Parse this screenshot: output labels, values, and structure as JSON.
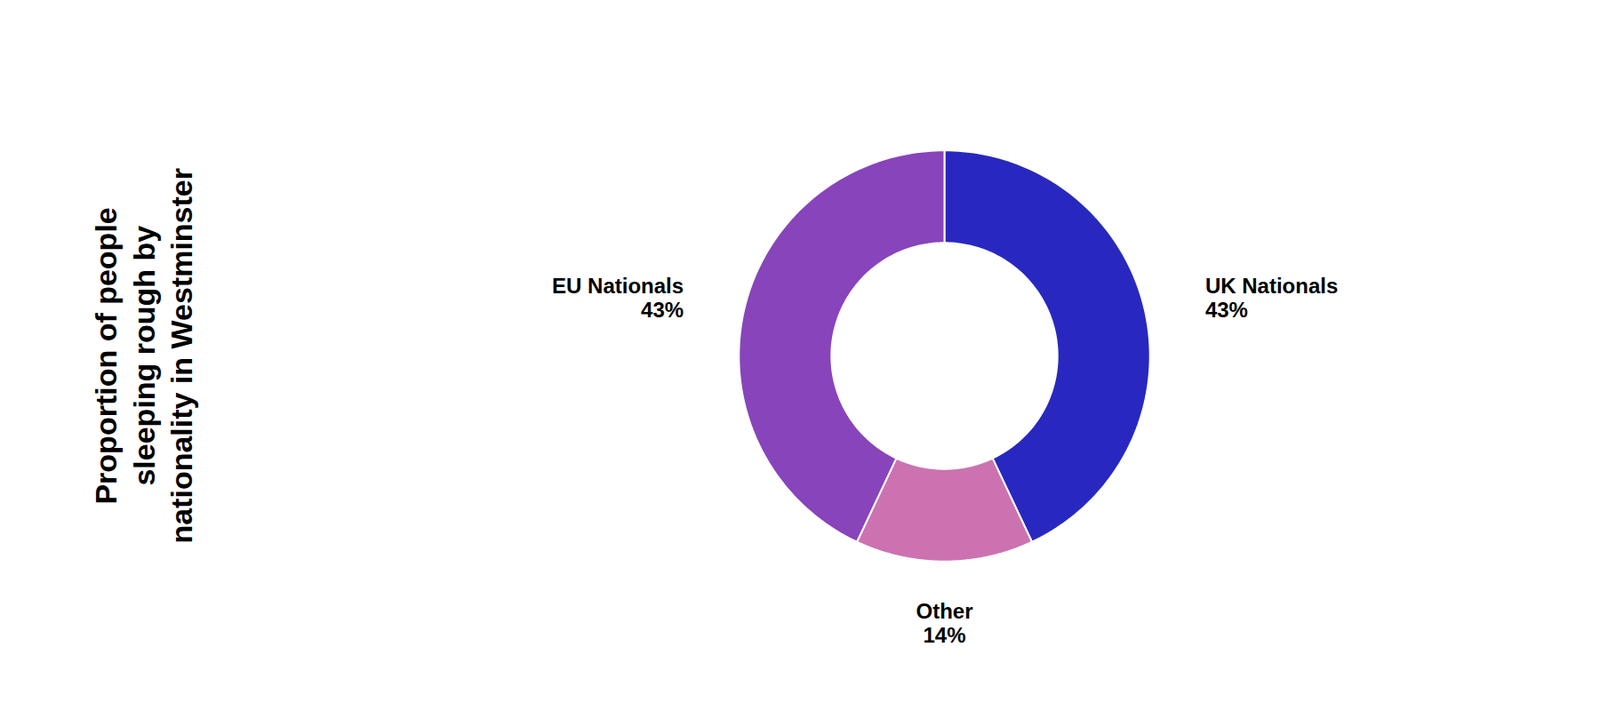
{
  "chart_data": {
    "type": "donut",
    "title": "Proportion of people\nsleeping rough by\nnationality in Westminster",
    "categories": [
      "UK Nationals",
      "Other",
      "EU Nationals"
    ],
    "values": [
      43,
      14,
      43
    ],
    "value_labels": [
      "43%",
      "14%",
      "43%"
    ],
    "colors": [
      "#2828c0",
      "#cc72b0",
      "#8844bb"
    ],
    "data_labels": true
  }
}
